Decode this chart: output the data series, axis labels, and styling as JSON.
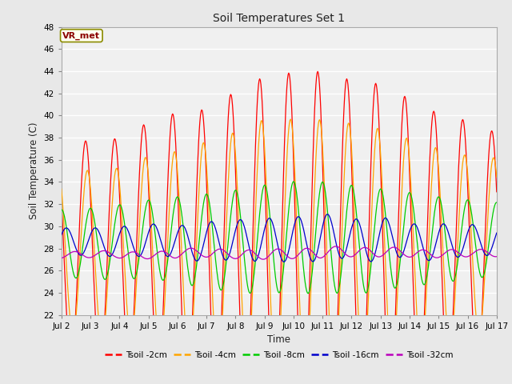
{
  "title": "Soil Temperatures Set 1",
  "xlabel": "Time",
  "ylabel": "Soil Temperature (C)",
  "ylim": [
    22,
    48
  ],
  "yticks": [
    22,
    24,
    26,
    28,
    30,
    32,
    34,
    36,
    38,
    40,
    42,
    44,
    46,
    48
  ],
  "xtick_labels": [
    "Jul 2",
    "Jul 3",
    "Jul 4",
    "Jul 5",
    "Jul 6",
    "Jul 7",
    "Jul 8",
    "Jul 9",
    "Jul 10",
    "Jul 11",
    "Jul 12",
    "Jul 13",
    "Jul 14",
    "Jul 15",
    "Jul 16",
    "Jul 17"
  ],
  "series": [
    {
      "label": "Tsoil -2cm",
      "color": "#FF0000"
    },
    {
      "label": "Tsoil -4cm",
      "color": "#FFA500"
    },
    {
      "label": "Tsoil -8cm",
      "color": "#00CC00"
    },
    {
      "label": "Tsoil -16cm",
      "color": "#0000CC"
    },
    {
      "label": "Tsoil -32cm",
      "color": "#BB00BB"
    }
  ],
  "annotation_text": "VR_met",
  "bg_color": "#E8E8E8",
  "plot_bg_color": "#F0F0F0"
}
